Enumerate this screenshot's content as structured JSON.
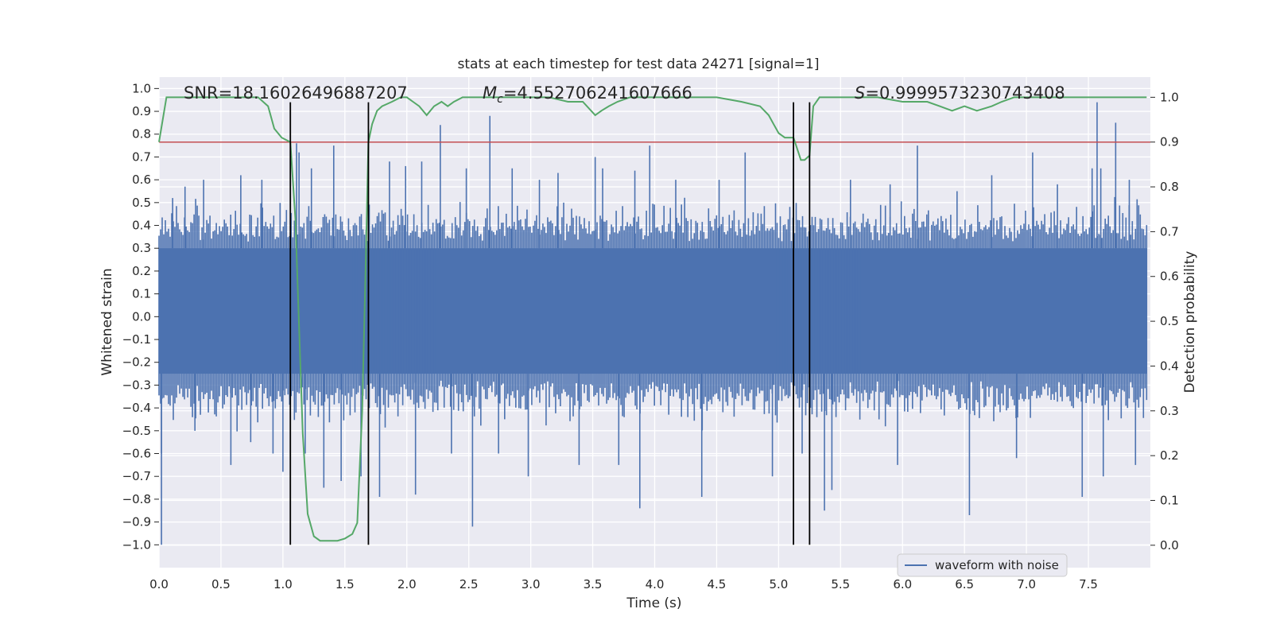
{
  "chart_data": {
    "type": "line",
    "title": "stats at each timestep for test data 24271 [signal=1]",
    "xlabel": "Time (s)",
    "ylabel": "Whitened strain",
    "y2label": "Detection probability",
    "xlim": [
      0.0,
      8.0
    ],
    "ylim": [
      -1.1,
      1.05
    ],
    "y2lim": [
      -0.05,
      1.045
    ],
    "x_ticks": [
      "0.0",
      "0.5",
      "1.0",
      "1.5",
      "2.0",
      "2.5",
      "3.0",
      "3.5",
      "4.0",
      "4.5",
      "5.0",
      "5.5",
      "6.0",
      "6.5",
      "7.0",
      "7.5"
    ],
    "y_ticks": [
      "−1.0",
      "−0.9",
      "−0.8",
      "−0.7",
      "−0.6",
      "−0.5",
      "−0.4",
      "−0.3",
      "−0.2",
      "−0.1",
      "0.0",
      "0.1",
      "0.2",
      "0.3",
      "0.4",
      "0.5",
      "0.6",
      "0.7",
      "0.8",
      "0.9",
      "1.0"
    ],
    "y2_ticks": [
      "0.0",
      "0.1",
      "0.2",
      "0.3",
      "0.4",
      "0.5",
      "0.6",
      "0.7",
      "0.8",
      "0.9",
      "1.0"
    ],
    "annotations": {
      "snr": "SNR=18.16026496887207",
      "mc_symbol": "M",
      "mc_sub": "c",
      "mc_value": "=4.552706241607666",
      "s_symbol": "S",
      "s_value": "=0.9999573230743408"
    },
    "legend": {
      "label": "waveform with noise",
      "position": "lower-right"
    },
    "threshold": {
      "y2": 0.9,
      "color": "#c44e52"
    },
    "event_lines_x": [
      1.06,
      1.69,
      5.12,
      5.25
    ],
    "event_line_range": [
      -1.0,
      0.94
    ],
    "waveform": {
      "name": "waveform with noise",
      "color": "#4c72b0",
      "core_band": [
        -0.25,
        0.3
      ],
      "typical_extent": [
        -0.45,
        0.48
      ]
    },
    "spikes": [
      {
        "x": 0.02,
        "y": -1.0
      },
      {
        "x": 0.02,
        "y": -0.6
      },
      {
        "x": 0.11,
        "y": 0.52
      },
      {
        "x": 0.21,
        "y": 0.57
      },
      {
        "x": 0.29,
        "y": -0.5
      },
      {
        "x": 0.36,
        "y": 0.6
      },
      {
        "x": 0.58,
        "y": -0.65
      },
      {
        "x": 0.66,
        "y": 0.62
      },
      {
        "x": 0.74,
        "y": -0.55
      },
      {
        "x": 0.83,
        "y": 0.6
      },
      {
        "x": 0.92,
        "y": -0.6
      },
      {
        "x": 1.0,
        "y": -0.68
      },
      {
        "x": 1.11,
        "y": 0.76
      },
      {
        "x": 1.13,
        "y": 0.72
      },
      {
        "x": 1.18,
        "y": -0.6
      },
      {
        "x": 1.23,
        "y": 0.65
      },
      {
        "x": 1.33,
        "y": -0.75
      },
      {
        "x": 1.41,
        "y": 0.75
      },
      {
        "x": 1.47,
        "y": -0.72
      },
      {
        "x": 1.63,
        "y": -0.7
      },
      {
        "x": 1.78,
        "y": -0.79
      },
      {
        "x": 1.86,
        "y": 0.68
      },
      {
        "x": 1.99,
        "y": 0.66
      },
      {
        "x": 2.07,
        "y": -0.78
      },
      {
        "x": 2.12,
        "y": 0.68
      },
      {
        "x": 2.27,
        "y": 0.84
      },
      {
        "x": 2.36,
        "y": -0.6
      },
      {
        "x": 2.48,
        "y": 0.65
      },
      {
        "x": 2.53,
        "y": -0.92
      },
      {
        "x": 2.67,
        "y": 0.88
      },
      {
        "x": 2.74,
        "y": -0.6
      },
      {
        "x": 2.85,
        "y": 0.65
      },
      {
        "x": 2.98,
        "y": -0.7
      },
      {
        "x": 3.07,
        "y": 0.6
      },
      {
        "x": 3.22,
        "y": 0.63
      },
      {
        "x": 3.39,
        "y": -0.65
      },
      {
        "x": 3.52,
        "y": 0.7
      },
      {
        "x": 3.58,
        "y": 0.65
      },
      {
        "x": 3.71,
        "y": -0.65
      },
      {
        "x": 3.84,
        "y": 0.64
      },
      {
        "x": 3.88,
        "y": -0.84
      },
      {
        "x": 3.96,
        "y": 0.75
      },
      {
        "x": 4.17,
        "y": 0.6
      },
      {
        "x": 4.38,
        "y": -0.79
      },
      {
        "x": 4.52,
        "y": 0.6
      },
      {
        "x": 4.73,
        "y": 0.72
      },
      {
        "x": 4.95,
        "y": -0.7
      },
      {
        "x": 5.12,
        "y": 0.65
      },
      {
        "x": 5.19,
        "y": -0.6
      },
      {
        "x": 5.37,
        "y": -0.85
      },
      {
        "x": 5.43,
        "y": -0.76
      },
      {
        "x": 5.58,
        "y": 0.6
      },
      {
        "x": 5.9,
        "y": 0.58
      },
      {
        "x": 5.96,
        "y": -0.65
      },
      {
        "x": 6.12,
        "y": 0.75
      },
      {
        "x": 6.44,
        "y": 0.55
      },
      {
        "x": 6.54,
        "y": -0.87
      },
      {
        "x": 6.72,
        "y": 0.62
      },
      {
        "x": 6.92,
        "y": -0.62
      },
      {
        "x": 7.05,
        "y": 0.72
      },
      {
        "x": 7.25,
        "y": 0.58
      },
      {
        "x": 7.45,
        "y": -0.79
      },
      {
        "x": 7.53,
        "y": 0.65
      },
      {
        "x": 7.57,
        "y": 0.94
      },
      {
        "x": 7.6,
        "y": 0.65
      },
      {
        "x": 7.62,
        "y": -0.7
      },
      {
        "x": 7.72,
        "y": 0.85
      },
      {
        "x": 7.83,
        "y": 0.6
      },
      {
        "x": 7.88,
        "y": -0.65
      }
    ],
    "probability": {
      "color": "#55a868",
      "x": [
        0.0,
        0.06,
        0.12,
        0.2,
        0.3,
        0.5,
        0.7,
        0.8,
        0.88,
        0.93,
        0.99,
        1.06,
        1.1,
        1.16,
        1.2,
        1.25,
        1.3,
        1.36,
        1.44,
        1.5,
        1.56,
        1.6,
        1.64,
        1.67,
        1.69,
        1.72,
        1.76,
        1.8,
        1.88,
        1.95,
        2.0,
        2.05,
        2.1,
        2.16,
        2.22,
        2.28,
        2.33,
        2.38,
        2.45,
        2.5,
        2.58,
        2.66,
        2.75,
        2.85,
        3.0,
        3.15,
        3.3,
        3.42,
        3.52,
        3.57,
        3.63,
        3.7,
        3.8,
        3.88,
        3.95,
        4.2,
        4.5,
        4.7,
        4.85,
        4.92,
        4.96,
        5.0,
        5.05,
        5.12,
        5.18,
        5.21,
        5.25,
        5.28,
        5.33,
        5.38,
        5.45,
        5.6,
        5.8,
        6.0,
        6.12,
        6.2,
        6.3,
        6.4,
        6.5,
        6.6,
        6.72,
        6.8,
        6.9,
        7.0,
        7.2,
        7.5,
        7.97
      ],
      "y": [
        0.9,
        1.0,
        1.0,
        1.0,
        1.0,
        1.0,
        1.0,
        1.0,
        0.98,
        0.93,
        0.91,
        0.9,
        0.73,
        0.25,
        0.07,
        0.02,
        0.01,
        0.01,
        0.01,
        0.015,
        0.025,
        0.05,
        0.3,
        0.65,
        0.9,
        0.94,
        0.97,
        0.98,
        0.99,
        1.0,
        1.0,
        0.99,
        0.98,
        0.96,
        0.98,
        0.99,
        0.98,
        0.99,
        1.0,
        1.0,
        1.0,
        1.0,
        1.0,
        1.0,
        1.0,
        1.0,
        0.99,
        0.99,
        0.96,
        0.97,
        0.98,
        0.99,
        1.0,
        1.0,
        1.0,
        1.0,
        1.0,
        0.99,
        0.98,
        0.96,
        0.94,
        0.92,
        0.91,
        0.91,
        0.86,
        0.86,
        0.87,
        0.98,
        1.0,
        1.0,
        1.0,
        1.0,
        1.0,
        0.99,
        0.99,
        0.99,
        0.98,
        0.97,
        0.98,
        0.97,
        0.98,
        0.99,
        1.0,
        1.0,
        1.0,
        1.0,
        1.0
      ]
    }
  }
}
